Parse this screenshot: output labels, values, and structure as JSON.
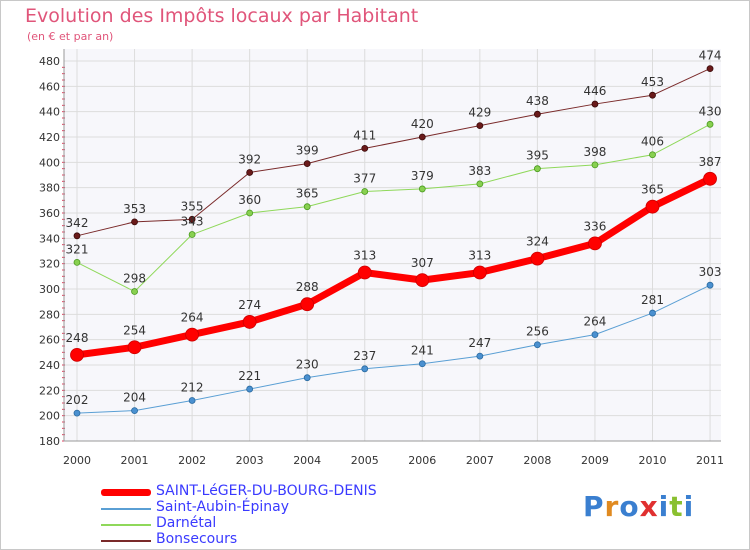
{
  "header": {
    "title": "Evolution des Impôts locaux par Habitant",
    "subtitle": "(en € et par an)"
  },
  "logo": {
    "text": "Proxiti"
  },
  "chart_data": {
    "type": "line",
    "x": [
      "2000",
      "2001",
      "2002",
      "2003",
      "2004",
      "2005",
      "2006",
      "2007",
      "2008",
      "2009",
      "2010",
      "2011"
    ],
    "ylim": [
      180,
      480
    ],
    "yticks": [
      180,
      200,
      220,
      240,
      260,
      280,
      300,
      320,
      340,
      360,
      380,
      400,
      420,
      440,
      460,
      480
    ],
    "grid": true,
    "legend_position": "bottom-left",
    "series": [
      {
        "name": "SAINT-LéGER-DU-BOURG-DENIS",
        "color": "#ff0000",
        "values": [
          248,
          254,
          264,
          274,
          288,
          313,
          307,
          313,
          324,
          336,
          365,
          387
        ]
      },
      {
        "name": "Saint-Aubin-Épinay",
        "color": "#5a9fd4",
        "values": [
          202,
          204,
          212,
          221,
          230,
          237,
          241,
          247,
          256,
          264,
          281,
          303
        ]
      },
      {
        "name": "Darnétal",
        "color": "#8fd85a",
        "values": [
          321,
          298,
          343,
          360,
          365,
          377,
          379,
          383,
          395,
          398,
          406,
          430
        ]
      },
      {
        "name": "Bonsecours",
        "color": "#7a2a2a",
        "values": [
          342,
          353,
          355,
          392,
          399,
          411,
          420,
          429,
          438,
          446,
          453,
          474
        ]
      }
    ]
  }
}
